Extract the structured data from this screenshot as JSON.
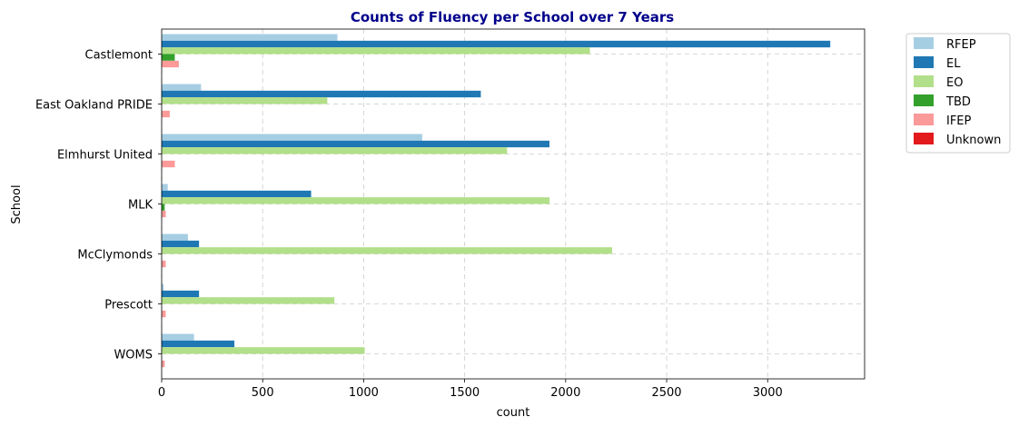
{
  "chart_data": {
    "type": "bar",
    "orientation": "horizontal",
    "title": "Counts of Fluency per School over 7 Years",
    "xlabel": "count",
    "ylabel": "School",
    "xlim": [
      0,
      3480
    ],
    "xticks": [
      0,
      500,
      1000,
      1500,
      2000,
      2500,
      3000
    ],
    "grid": true,
    "legend_position": "outside-top-right",
    "categories": [
      "Castlemont",
      "East Oakland PRIDE",
      "Elmhurst United",
      "MLK",
      "McClymonds",
      "Prescott",
      "WOMS"
    ],
    "series": [
      {
        "name": "RFEP",
        "color": "#a6cee3",
        "values": [
          870,
          195,
          1290,
          30,
          130,
          10,
          160
        ]
      },
      {
        "name": "EL",
        "color": "#1f78b4",
        "values": [
          3310,
          1580,
          1920,
          740,
          185,
          185,
          360
        ]
      },
      {
        "name": "EO",
        "color": "#b2df8a",
        "values": [
          2120,
          820,
          1710,
          1920,
          2230,
          855,
          1005
        ]
      },
      {
        "name": "TBD",
        "color": "#33a02c",
        "values": [
          65,
          0,
          0,
          15,
          0,
          0,
          0
        ]
      },
      {
        "name": "IFEP",
        "color": "#fb9a99",
        "values": [
          85,
          40,
          65,
          20,
          20,
          20,
          15
        ]
      },
      {
        "name": "Unknown",
        "color": "#e31a1c",
        "values": [
          0,
          0,
          0,
          0,
          0,
          0,
          0
        ]
      }
    ]
  }
}
